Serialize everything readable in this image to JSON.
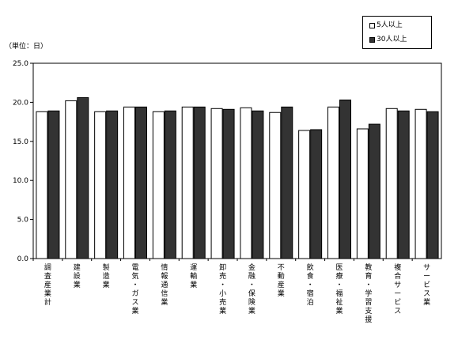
{
  "chart_data": {
    "type": "bar",
    "unit_label": "（単位：日）",
    "ylim": [
      0,
      25
    ],
    "yticks": [
      "0.0",
      "5.0",
      "10.0",
      "15.0",
      "20.0",
      "25.0"
    ],
    "categories": [
      "調査産業計",
      "建設業",
      "製造業",
      "電気・ガス業",
      "情報通信業",
      "運輸業",
      "卸売・小売業",
      "金融・保険業",
      "不動産業",
      "飲食・宿泊",
      "医療・福祉業",
      "教育・学習支援",
      "複合サービス",
      "サービス業"
    ],
    "series": [
      {
        "name": "5人以上",
        "color": "#ffffff",
        "values": [
          18.8,
          20.2,
          18.8,
          19.4,
          18.8,
          19.4,
          19.2,
          19.3,
          18.7,
          16.4,
          19.4,
          16.6,
          19.2,
          19.1
        ]
      },
      {
        "name": "30人以上",
        "color": "#333333",
        "values": [
          18.9,
          20.6,
          18.9,
          19.4,
          18.9,
          19.4,
          19.1,
          18.9,
          19.4,
          16.5,
          20.3,
          17.2,
          18.9,
          18.8
        ]
      }
    ],
    "grid": false,
    "legend_position": "top-right"
  }
}
